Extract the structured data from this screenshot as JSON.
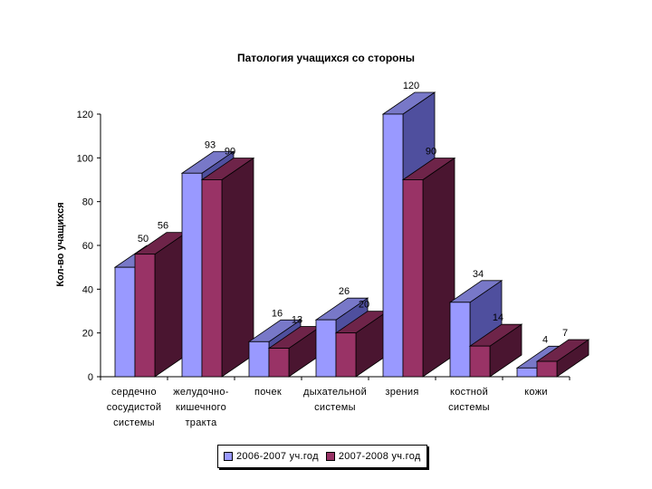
{
  "chart_data": {
    "type": "bar",
    "title": "Патология учащихся со стороны",
    "ylabel": "Кол-во учащихся",
    "xlabel": "",
    "ylim": [
      0,
      120
    ],
    "yticks": [
      "0",
      "20",
      "40",
      "60",
      "80",
      "100",
      "120"
    ],
    "categories": [
      [
        "сердечно",
        "сосудистой",
        "системы"
      ],
      [
        "желудочно-",
        "кишечного",
        "тракта"
      ],
      [
        "почек"
      ],
      [
        "дыхательной",
        "системы"
      ],
      [
        "зрения"
      ],
      [
        "костной",
        "системы"
      ],
      [
        "кожи"
      ]
    ],
    "series": [
      {
        "name": "2006-2007 уч.год",
        "values": [
          50,
          93,
          16,
          26,
          120,
          34,
          4
        ]
      },
      {
        "name": "2007-2008 уч.год",
        "values": [
          56,
          90,
          13,
          20,
          90,
          14,
          7
        ]
      }
    ],
    "data_labels": [
      [
        "50",
        "93",
        "16",
        "26",
        "120",
        "34",
        "4"
      ],
      [
        "56",
        "90",
        "13",
        "20",
        "90",
        "14",
        "7"
      ]
    ],
    "legend_position": "bottom",
    "grid": false,
    "style": "3d-clustered-bar",
    "colors": {
      "series1_front": "#9999ff",
      "series1_side": "#4f4f9e",
      "series1_top": "#7878c8",
      "series2_front": "#993366",
      "series2_side": "#4a1530",
      "series2_top": "#6e2449"
    }
  }
}
